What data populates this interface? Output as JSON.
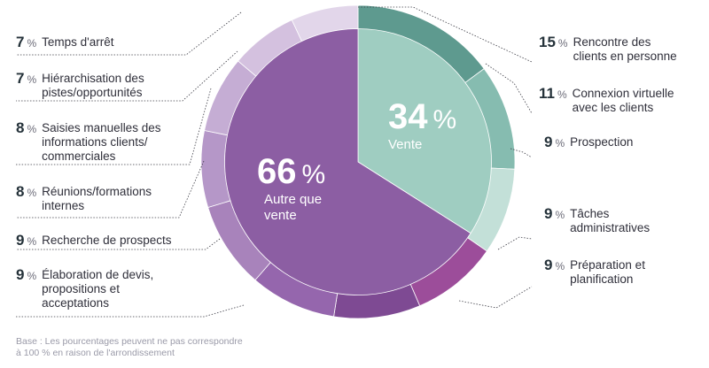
{
  "chart_data": {
    "type": "pie",
    "main": [
      {
        "label": "Vente",
        "value": 34,
        "color": "#9fcdc1"
      },
      {
        "label": "Autre que\nvente",
        "value": 66,
        "color": "#8c5ea3"
      }
    ],
    "outer": [
      {
        "label": "Rencontre des\nclients en personne",
        "value": 15,
        "color": "#5e9a8f",
        "group": "Vente"
      },
      {
        "label": "Connexion virtuelle\navec les clients",
        "value": 11,
        "color": "#86bcb0",
        "group": "Vente"
      },
      {
        "label": "Prospection",
        "value": 9,
        "color": "#c3e0d8",
        "group": "Vente"
      },
      {
        "label": "Tâches\nadministratives",
        "value": 9,
        "color": "#9c4d9a",
        "group": "Autre que vente"
      },
      {
        "label": "Préparation et\nplanification",
        "value": 9,
        "color": "#7e4a93",
        "group": "Autre que vente"
      },
      {
        "label": "Élaboration de devis,\npropositions et\nacceptations",
        "value": 9,
        "color": "#9566ad",
        "group": "Autre que vente"
      },
      {
        "label": "Recherche de prospects",
        "value": 9,
        "color": "#a883bb",
        "group": "Autre que vente"
      },
      {
        "label": "Réunions/formations\ninternes",
        "value": 8,
        "color": "#b597c8",
        "group": "Autre que vente"
      },
      {
        "label": "Saisies manuelles des\ninformations clients/\ncommerciales",
        "value": 8,
        "color": "#c5add4",
        "group": "Autre que vente"
      },
      {
        "label": "Hiérarchisation des\npistes/opportunités",
        "value": 7,
        "color": "#d4c1df",
        "group": "Autre que vente"
      },
      {
        "label": "Temps d'arrêt",
        "value": 7,
        "color": "#e2d6ea",
        "group": "Autre que vente"
      }
    ],
    "percent_symbol": "%"
  },
  "footnote": "Base : Les pourcentages peuvent ne pas correspondre\nà 100 % en raison de l'arrondissement"
}
